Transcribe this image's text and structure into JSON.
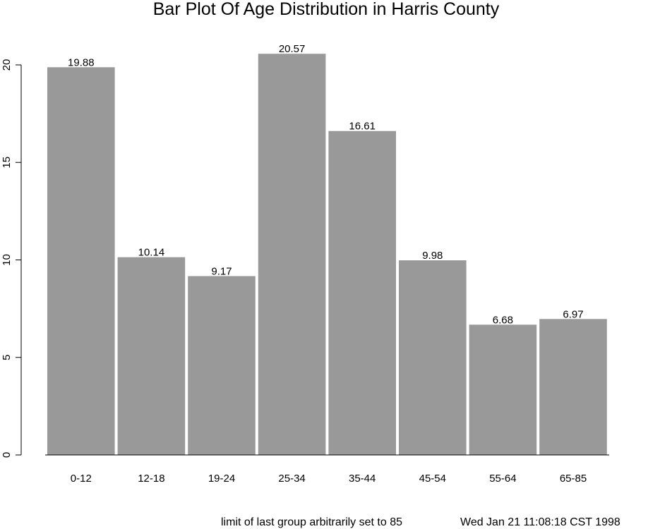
{
  "chart_data": {
    "type": "bar",
    "title": "Bar Plot Of Age Distribution in Harris County",
    "categories": [
      "0-12",
      "12-18",
      "19-24",
      "25-34",
      "35-44",
      "45-54",
      "55-64",
      "65-85"
    ],
    "values": [
      19.88,
      10.14,
      9.17,
      20.57,
      16.61,
      9.98,
      6.68,
      6.97
    ],
    "data_labels": [
      "19.88",
      "10.14",
      "9.17",
      "20.57",
      "16.61",
      "9.98",
      "6.68",
      "6.97"
    ],
    "yticks": [
      "0",
      "5",
      "10",
      "15",
      "20"
    ],
    "ylim": [
      0,
      22
    ],
    "bar_color": "#999999",
    "grid": false,
    "legend": "none"
  },
  "footer": {
    "note": "limit of last group arbitrarily set to 85",
    "timestamp": "Wed Jan 21 11:08:18 CST 1998"
  }
}
